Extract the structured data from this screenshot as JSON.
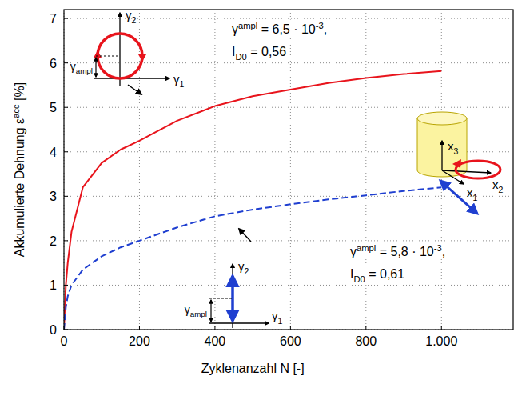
{
  "chart_data": {
    "type": "line",
    "x_label": [
      {
        "text": "Zyklenanzahl N [-]"
      }
    ],
    "y_label": [
      {
        "text": "Akkumulierte Dehnung ε"
      },
      {
        "text": "acc",
        "sup": true
      },
      {
        "text": " [%]"
      }
    ],
    "xlim": [
      0,
      1190
    ],
    "ylim": [
      0,
      7.2
    ],
    "xticks": [
      0,
      200,
      400,
      600,
      800,
      {
        "value": 1000,
        "label": "1.000"
      }
    ],
    "yticks": [
      0,
      1,
      2,
      3,
      4,
      5,
      6,
      7
    ],
    "grid": true,
    "series": [
      {
        "color": "#e8141c",
        "line_style": "solid",
        "x": [
          0,
          5,
          10,
          20,
          50,
          100,
          150,
          200,
          300,
          400,
          500,
          600,
          700,
          800,
          900,
          1000
        ],
        "values": [
          0,
          1.0,
          1.5,
          2.2,
          3.2,
          3.75,
          4.05,
          4.25,
          4.7,
          5.03,
          5.25,
          5.4,
          5.55,
          5.66,
          5.75,
          5.82
        ]
      },
      {
        "color": "#1f3fd0",
        "line_style": "dashed",
        "x": [
          0,
          5,
          10,
          20,
          50,
          100,
          150,
          200,
          300,
          400,
          500,
          600,
          700,
          800,
          900,
          1000
        ],
        "values": [
          0,
          0.5,
          0.75,
          1.0,
          1.35,
          1.65,
          1.85,
          2.0,
          2.3,
          2.55,
          2.7,
          2.82,
          2.93,
          3.02,
          3.12,
          3.2
        ]
      }
    ],
    "annotations": [
      {
        "lines": [
          [
            {
              "text": "γ"
            },
            {
              "text": "ampl",
              "sup": true
            },
            {
              "text": " = 6,5 · 10"
            },
            {
              "text": "-3",
              "sup": true
            },
            {
              "text": ","
            }
          ],
          [
            {
              "text": "I"
            },
            {
              "text": "D0",
              "sub": true
            },
            {
              "text": " = 0,56"
            }
          ]
        ]
      },
      {
        "lines": [
          [
            {
              "text": "γ"
            },
            {
              "text": "ampl",
              "sup": true
            },
            {
              "text": " = 5,8 · 10"
            },
            {
              "text": "-3",
              "sup": true
            },
            {
              "text": ","
            }
          ],
          [
            {
              "text": "I"
            },
            {
              "text": "D0",
              "sub": true
            },
            {
              "text": " = 0,61"
            }
          ]
        ]
      }
    ],
    "diagrams": {
      "circular_path": {
        "axis_horizontal": [
          {
            "text": "γ"
          },
          {
            "text": "1",
            "sub": true
          }
        ],
        "axis_vertical": [
          {
            "text": "γ"
          },
          {
            "text": "2",
            "sub": true
          }
        ],
        "amplitude": [
          {
            "text": "γ"
          },
          {
            "text": "ampl",
            "sub": true
          }
        ]
      },
      "linear_path": {
        "axis_horizontal": [
          {
            "text": "γ"
          },
          {
            "text": "1",
            "sub": true
          }
        ],
        "axis_vertical": [
          {
            "text": "γ"
          },
          {
            "text": "2",
            "sub": true
          }
        ],
        "amplitude": [
          {
            "text": "γ"
          },
          {
            "text": "ampl",
            "sub": true
          }
        ]
      },
      "specimen": {
        "axis_1": [
          {
            "text": "x"
          },
          {
            "text": "1",
            "sub": true
          }
        ],
        "axis_2": [
          {
            "text": "x"
          },
          {
            "text": "2",
            "sub": true
          }
        ],
        "axis_3": [
          {
            "text": "x"
          },
          {
            "text": "3",
            "sub": true
          }
        ]
      }
    }
  }
}
